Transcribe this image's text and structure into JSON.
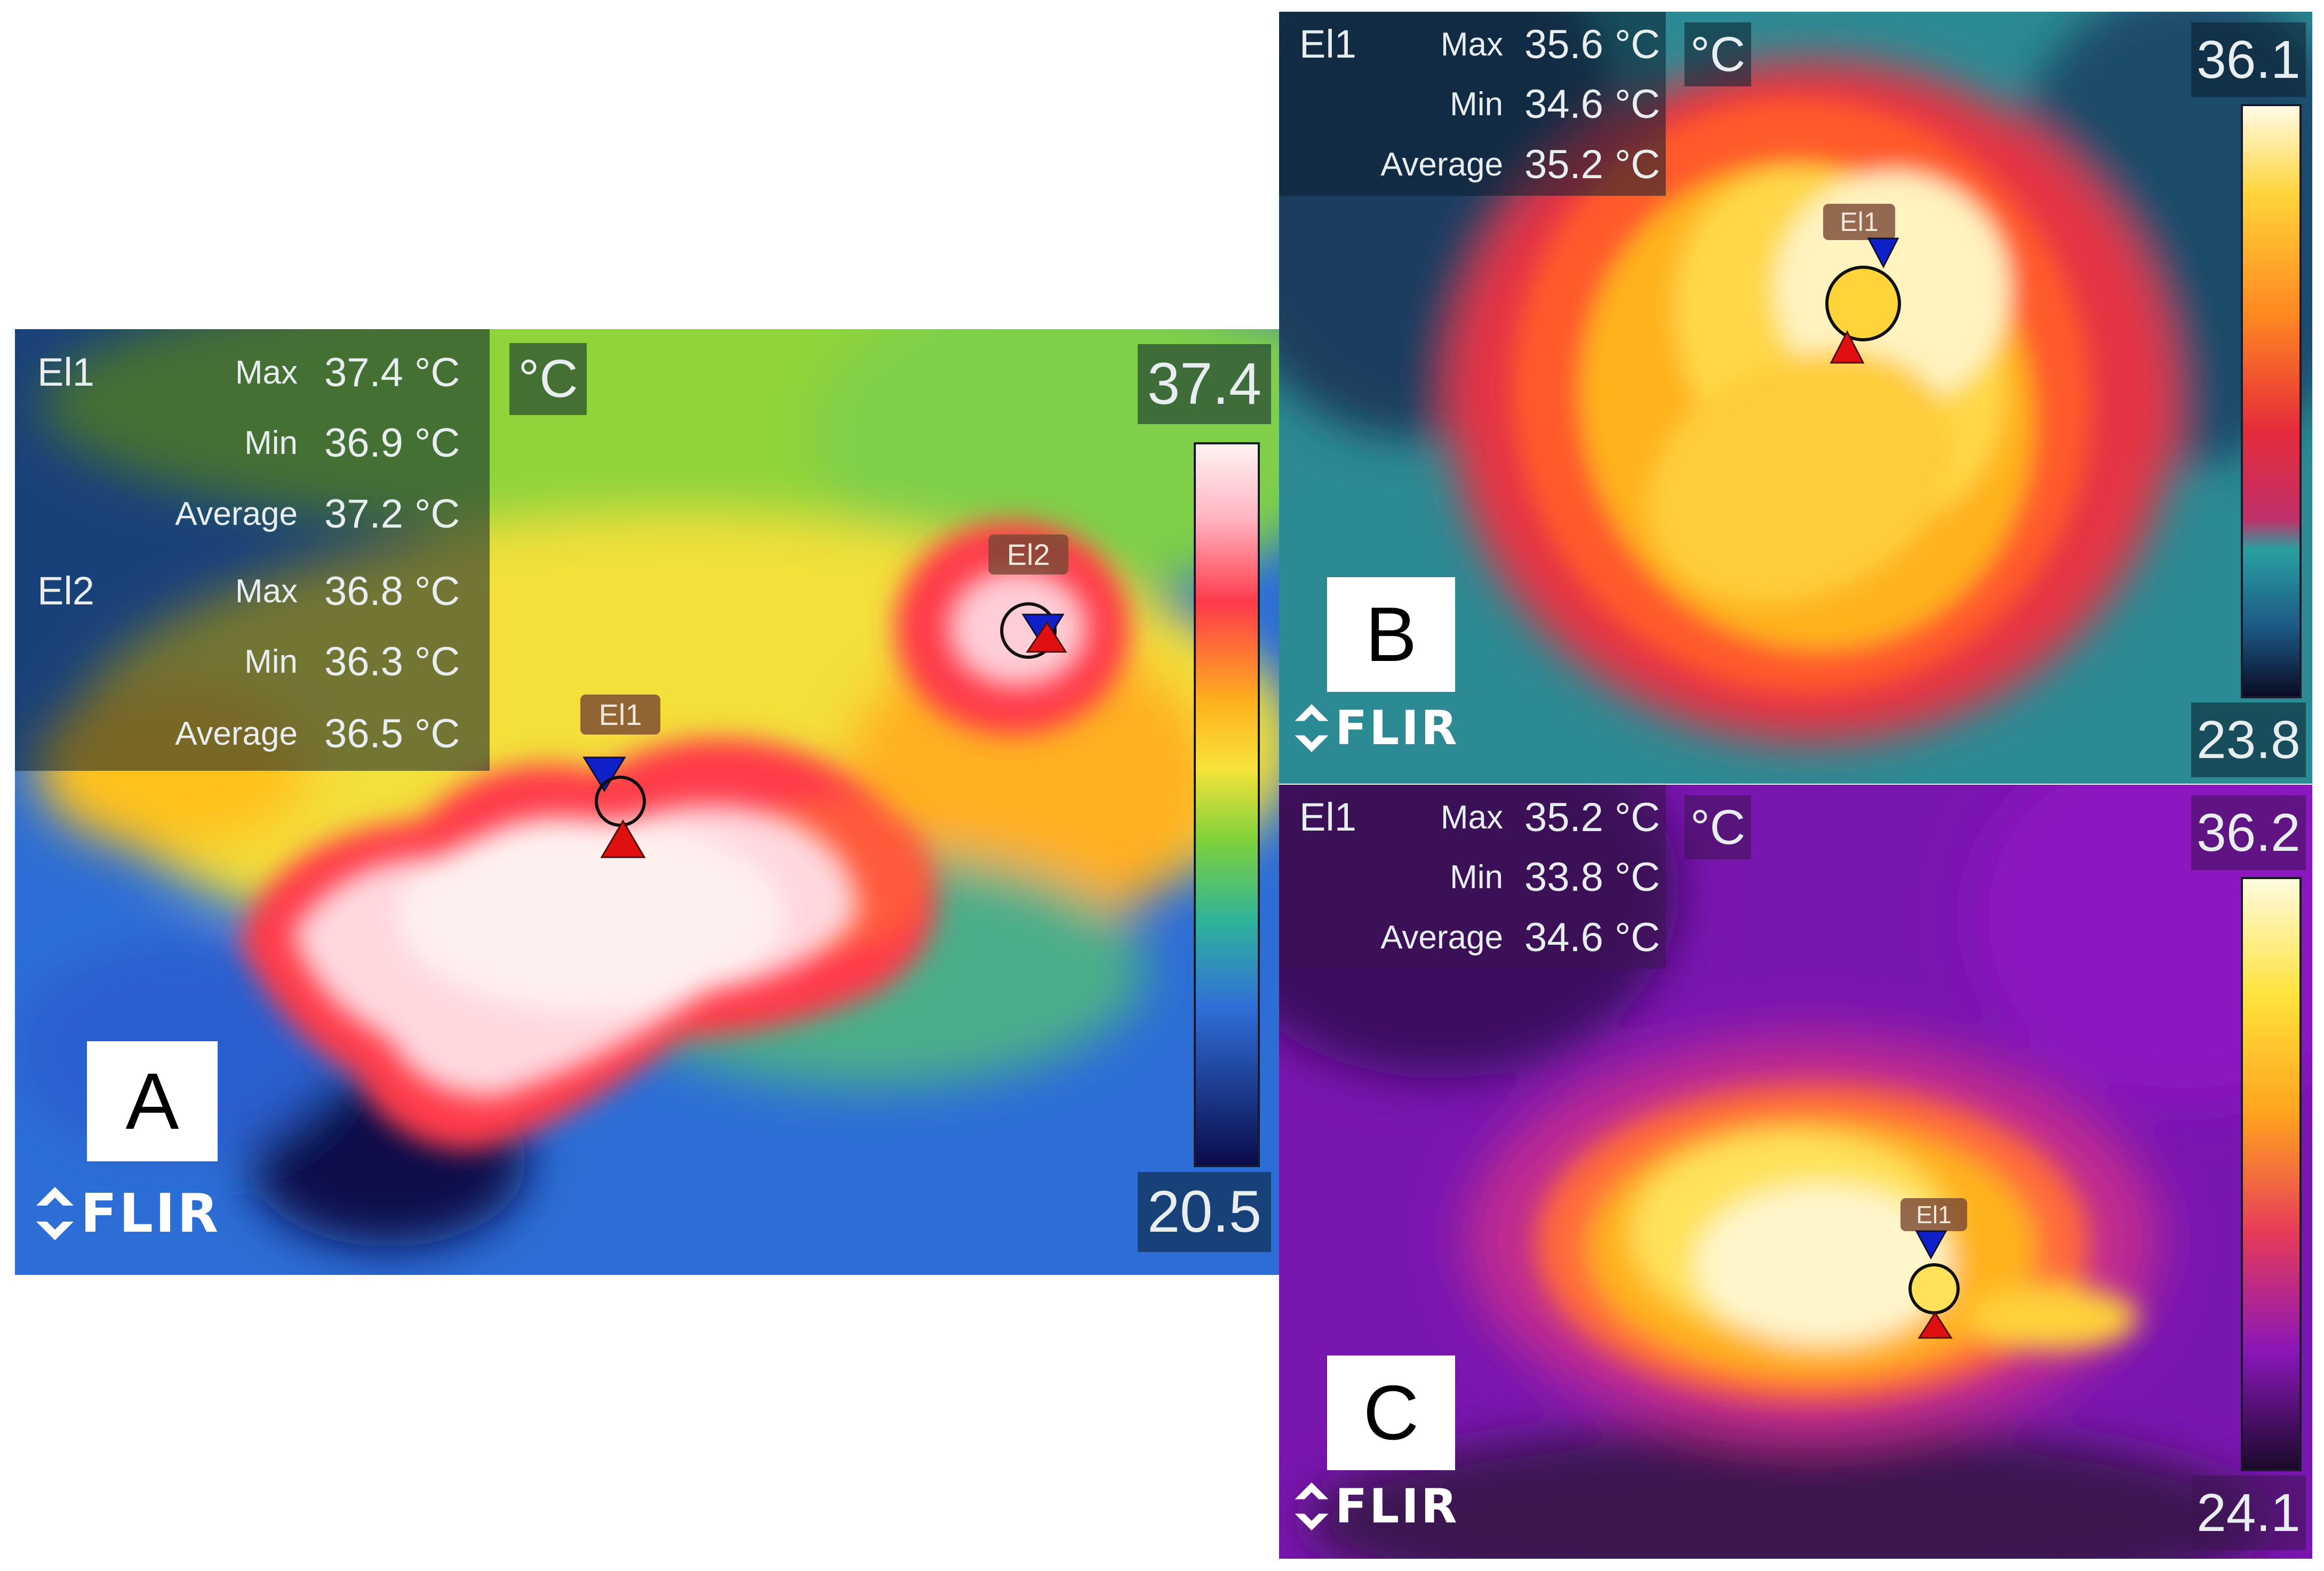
{
  "panel_a": {
    "letter": "A",
    "unit": "°C",
    "scale_max": "37.4",
    "scale_min": "20.5",
    "brand": "FLIR",
    "measurements": [
      {
        "spot": "El1",
        "label": "Max",
        "value": "37.4 °C"
      },
      {
        "spot": "",
        "label": "Min",
        "value": "36.9 °C"
      },
      {
        "spot": "",
        "label": "Average",
        "value": "37.2 °C"
      },
      {
        "spot": "El2",
        "label": "Max",
        "value": "36.8 °C"
      },
      {
        "spot": "",
        "label": "Min",
        "value": "36.3 °C"
      },
      {
        "spot": "",
        "label": "Average",
        "value": "36.5 °C"
      }
    ],
    "markers": [
      "El1",
      "El2"
    ],
    "palette": "rainbow",
    "colors": {
      "hot": "#fff0ee",
      "warm": "#ff3a4a",
      "mid": "#f7e23a",
      "cool": "#7ed13a",
      "cold": "#2f6fd8",
      "coldest": "#0a0a4a"
    }
  },
  "panel_b": {
    "letter": "B",
    "unit": "°C",
    "scale_max": "36.1",
    "scale_min": "23.8",
    "brand": "FLIR",
    "measurements": [
      {
        "spot": "El1",
        "label": "Max",
        "value": "35.6 °C"
      },
      {
        "spot": "",
        "label": "Min",
        "value": "34.6 °C"
      },
      {
        "spot": "",
        "label": "Average",
        "value": "35.2 °C"
      }
    ],
    "markers": [
      "El1"
    ],
    "palette": "arctic",
    "colors": {
      "hot": "#fff7c8",
      "warm": "#ffb21e",
      "mid": "#e52b3a",
      "cool": "#2d9a9a",
      "cold": "#1c4a66"
    }
  },
  "panel_c": {
    "letter": "C",
    "unit": "°C",
    "scale_max": "36.2",
    "scale_min": "24.1",
    "brand": "FLIR",
    "measurements": [
      {
        "spot": "El1",
        "label": "Max",
        "value": "35.2 °C"
      },
      {
        "spot": "",
        "label": "Min",
        "value": "33.8 °C"
      },
      {
        "spot": "",
        "label": "Average",
        "value": "34.6 °C"
      }
    ],
    "markers": [
      "El1"
    ],
    "palette": "iron",
    "colors": {
      "hot": "#fffbe0",
      "warm": "#ffb21e",
      "mid": "#e63b5a",
      "cool": "#8a16b8",
      "cold": "#24103a"
    }
  }
}
